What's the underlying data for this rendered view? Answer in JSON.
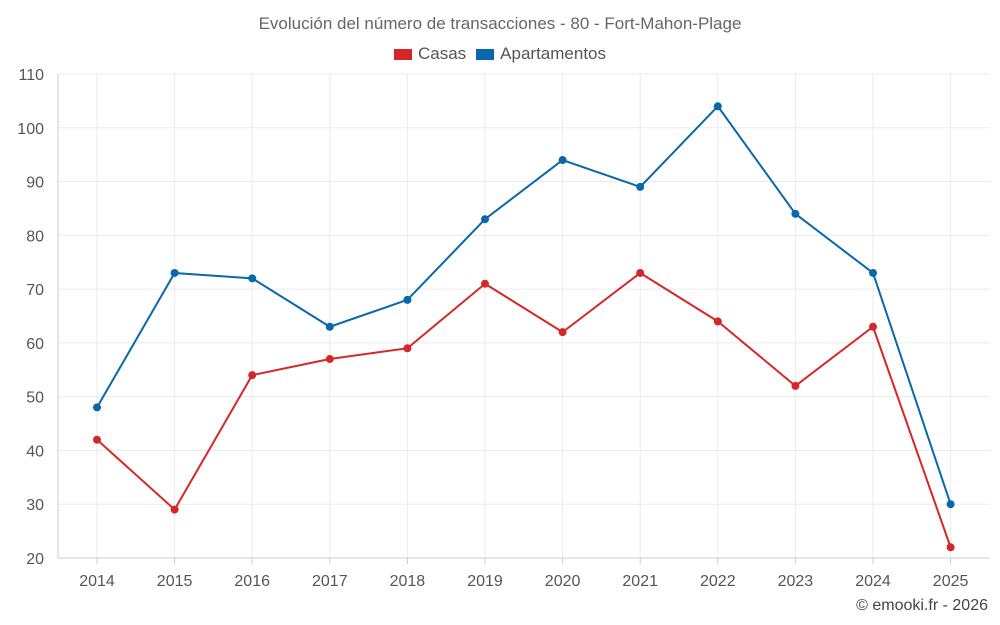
{
  "chart_data": {
    "type": "line",
    "title": "Evolución del número de transacciones - 80 - Fort-Mahon-Plage",
    "xlabel": "",
    "ylabel": "",
    "categories": [
      "2014",
      "2015",
      "2016",
      "2017",
      "2018",
      "2019",
      "2020",
      "2021",
      "2022",
      "2023",
      "2024",
      "2025"
    ],
    "ylim": [
      20,
      110
    ],
    "yticks": [
      20,
      30,
      40,
      50,
      60,
      70,
      80,
      90,
      100,
      110
    ],
    "grid": true,
    "legend_position": "top-center",
    "series": [
      {
        "name": "Casas",
        "color": "#d62728",
        "values": [
          42,
          29,
          54,
          57,
          59,
          71,
          62,
          73,
          64,
          52,
          63,
          22
        ]
      },
      {
        "name": "Apartamentos",
        "color": "#0868ac",
        "values": [
          48,
          73,
          72,
          63,
          68,
          83,
          94,
          89,
          104,
          84,
          73,
          30
        ]
      }
    ]
  },
  "credit": "© emooki.fr - 2026"
}
